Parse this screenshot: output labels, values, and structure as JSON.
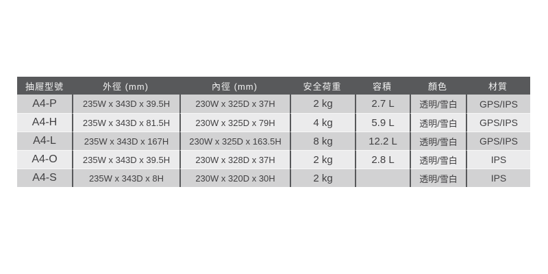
{
  "page": {
    "background": "#ffffff"
  },
  "colors": {
    "header_bg": "#58595b",
    "header_text": "#f2f2f2",
    "row_dark": "#d2d2d3",
    "row_light": "#ebebec",
    "column_divider": "#57585a",
    "body_text": "#414042"
  },
  "table": {
    "headers": {
      "model": "抽屜型號",
      "outer": "外徑 (mm)",
      "inner": "內徑 (mm)",
      "load": "安全荷重",
      "volume": "容積",
      "color": "顏色",
      "material": "材質"
    },
    "rows": [
      {
        "model": "A4-P",
        "outer": "235W x 343D x 39.5H",
        "inner": "230W x 325D x 37H",
        "load": "2 kg",
        "volume": "2.7 L",
        "color": "透明/雪白",
        "material": "GPS/IPS"
      },
      {
        "model": "A4-H",
        "outer": "235W x 343D x 81.5H",
        "inner": "230W x 325D x 79H",
        "load": "4 kg",
        "volume": "5.9 L",
        "color": "透明/雪白",
        "material": "GPS/IPS"
      },
      {
        "model": "A4-L",
        "outer": "235W x 343D x 167H",
        "inner": "230W x 325D x 163.5H",
        "load": "8 kg",
        "volume": "12.2 L",
        "color": "透明/雪白",
        "material": "GPS/IPS"
      },
      {
        "model": "A4-O",
        "outer": "235W x 343D x 39.5H",
        "inner": "230W x 328D x 37H",
        "load": "2 kg",
        "volume": "2.8 L",
        "color": "透明/雪白",
        "material": "IPS"
      },
      {
        "model": "A4-S",
        "outer": "235W x 343D x 8H",
        "inner": "230W x 320D x 30H",
        "load": "2 kg",
        "volume": "",
        "color": "透明/雪白",
        "material": "IPS"
      }
    ]
  }
}
